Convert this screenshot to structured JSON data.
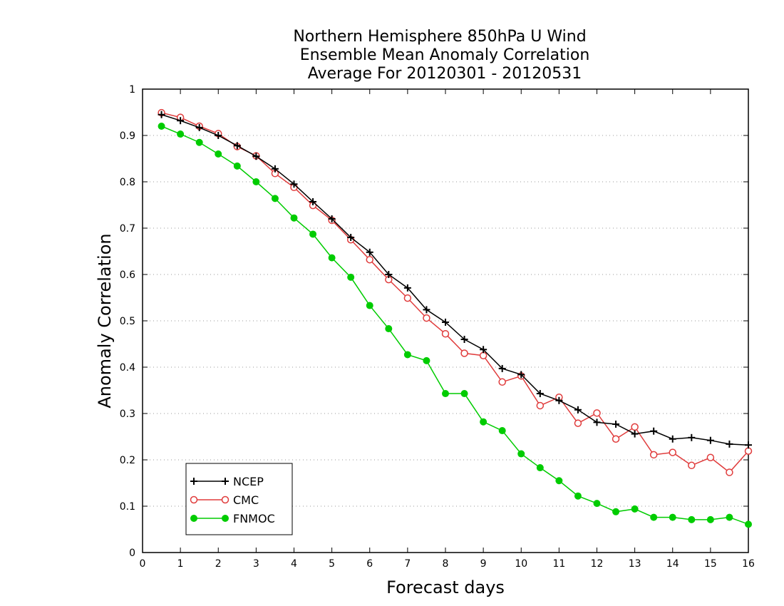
{
  "chart_data": {
    "type": "line",
    "title": [
      "Northern Hemisphere 850hPa U Wind",
      "Ensemble Mean Anomaly Correlation",
      "Average For 20120301 - 20120531"
    ],
    "xlabel": "Forecast days",
    "ylabel": "Anomaly Correlation",
    "xlim": [
      0,
      16
    ],
    "ylim": [
      0,
      1
    ],
    "x_ticks": [
      "0",
      "1",
      "2",
      "3",
      "4",
      "5",
      "6",
      "7",
      "8",
      "9",
      "10",
      "11",
      "12",
      "13",
      "14",
      "15",
      "16"
    ],
    "y_ticks": [
      "0",
      "0.1",
      "0.2",
      "0.3",
      "0.4",
      "0.5",
      "0.6",
      "0.7",
      "0.8",
      "0.9",
      "1"
    ],
    "grid": "horizontal dotted",
    "legend_position": "bottom-left",
    "x": [
      0.5,
      1,
      1.5,
      2,
      2.5,
      3,
      3.5,
      4,
      4.5,
      5,
      5.5,
      6,
      6.5,
      7,
      7.5,
      8,
      8.5,
      9,
      9.5,
      10,
      10.5,
      11,
      11.5,
      12,
      12.5,
      13,
      13.5,
      14,
      14.5,
      15,
      15.5,
      16
    ],
    "series": [
      {
        "name": "NCEP",
        "color": "#000000",
        "marker": "plus",
        "values": [
          0.945,
          0.932,
          0.917,
          0.9,
          0.878,
          0.855,
          0.828,
          0.795,
          0.757,
          0.72,
          0.68,
          0.648,
          0.6,
          0.571,
          0.524,
          0.497,
          0.46,
          0.438,
          0.397,
          0.384,
          0.343,
          0.328,
          0.308,
          0.281,
          0.277,
          0.256,
          0.262,
          0.245,
          0.248,
          0.242,
          0.234,
          0.232
        ]
      },
      {
        "name": "CMC",
        "color": "#e03c3c",
        "marker": "open-circle",
        "values": [
          0.949,
          0.939,
          0.92,
          0.904,
          0.876,
          0.856,
          0.818,
          0.788,
          0.749,
          0.717,
          0.675,
          0.632,
          0.589,
          0.549,
          0.506,
          0.472,
          0.43,
          0.425,
          0.368,
          0.381,
          0.317,
          0.335,
          0.279,
          0.301,
          0.245,
          0.271,
          0.211,
          0.216,
          0.188,
          0.205,
          0.173,
          0.219
        ]
      },
      {
        "name": "FNMOC",
        "color": "#00cc00",
        "marker": "filled-circle",
        "values": [
          0.92,
          0.903,
          0.885,
          0.86,
          0.834,
          0.8,
          0.764,
          0.722,
          0.687,
          0.636,
          0.594,
          0.533,
          0.483,
          0.427,
          0.414,
          0.343,
          0.343,
          0.282,
          0.263,
          0.213,
          0.183,
          0.155,
          0.122,
          0.106,
          0.088,
          0.094,
          0.076,
          0.076,
          0.071,
          0.071,
          0.076,
          0.061
        ]
      }
    ]
  }
}
